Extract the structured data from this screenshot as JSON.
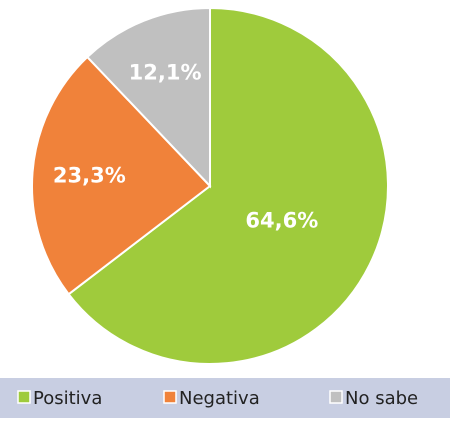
{
  "chart_data": {
    "type": "pie",
    "categories": [
      "Positiva",
      "Negativa",
      "No sabe"
    ],
    "values": [
      64.6,
      23.3,
      12.1
    ],
    "value_labels": [
      "64,6%",
      "23,3%",
      "12,1%"
    ],
    "colors": [
      "#9fcb3c",
      "#f0823a",
      "#c0c0c0"
    ],
    "legend": "bottom"
  }
}
